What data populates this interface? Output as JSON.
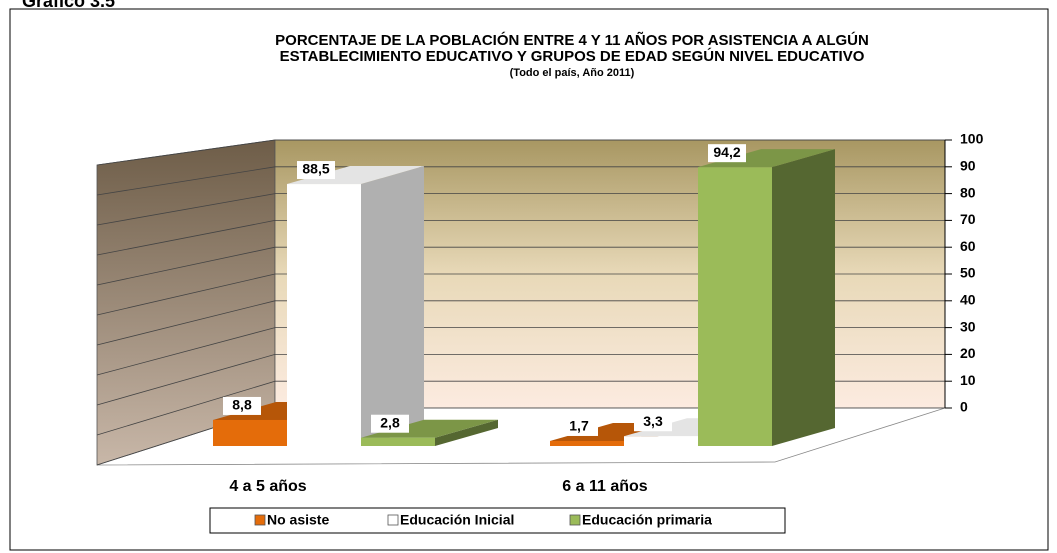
{
  "caption": "Gráfico 3.5",
  "chart_data": {
    "type": "bar3d",
    "title": [
      "PORCENTAJE DE LA POBLACIÓN ENTRE 4 Y 11 AÑOS POR ASISTENCIA A ALGÚN",
      "ESTABLECIMIENTO EDUCATIVO Y GRUPOS DE EDAD SEGÚN NIVEL EDUCATIVO"
    ],
    "subtitle": "(Todo el país, Año 2011)",
    "categories": [
      "4 a 5 años",
      "6 a 11 años"
    ],
    "series": [
      {
        "name": "No asiste",
        "color": "#e46c0a",
        "values": [
          8.8,
          1.7
        ],
        "value_labels": [
          "8,8",
          "1,7"
        ]
      },
      {
        "name": "Educación Inicial",
        "color": "#ffffff",
        "values": [
          88.5,
          3.3
        ],
        "value_labels": [
          "88,5",
          "3,3"
        ]
      },
      {
        "name": "Educación primaria",
        "color": "#9bbb59",
        "values": [
          2.8,
          94.2
        ],
        "value_labels": [
          "2,8",
          "94,2"
        ]
      }
    ],
    "ylim": [
      0,
      100
    ],
    "yticks": [
      0,
      10,
      20,
      30,
      40,
      50,
      60,
      70,
      80,
      90,
      100
    ],
    "grid": true,
    "legend": "bottom"
  }
}
